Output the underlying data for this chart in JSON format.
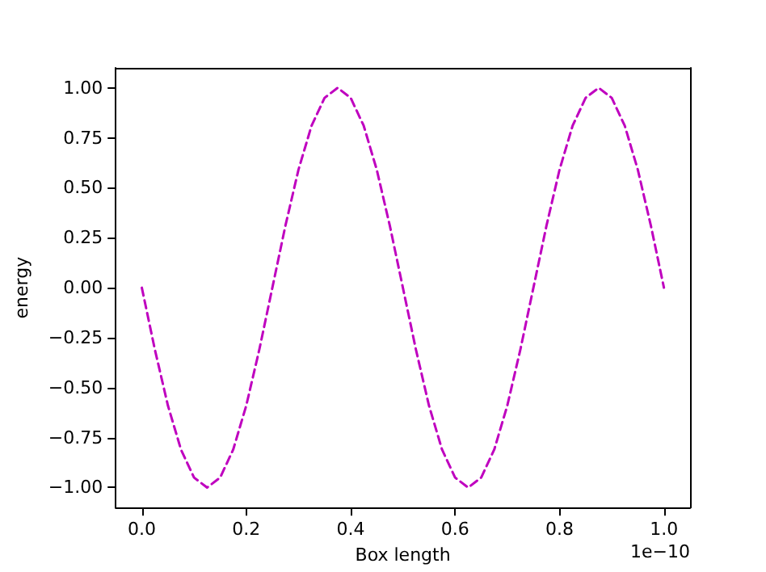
{
  "chart_data": {
    "type": "line",
    "xlabel": "Box length",
    "ylabel": "energy",
    "annotations": [
      "1e−10"
    ],
    "x": [
      0,
      0.025,
      0.05,
      0.075,
      0.1,
      0.125,
      0.15,
      0.175,
      0.2,
      0.225,
      0.25,
      0.275,
      0.3,
      0.325,
      0.35,
      0.375,
      0.4,
      0.425,
      0.45,
      0.475,
      0.5,
      0.525,
      0.55,
      0.575,
      0.6,
      0.625,
      0.65,
      0.675,
      0.7,
      0.725,
      0.75,
      0.775,
      0.8,
      0.825,
      0.85,
      0.875,
      0.9,
      0.925,
      0.95,
      0.975,
      1
    ],
    "series": [
      {
        "color": "#bf00bf",
        "line_style": "dashed",
        "values": [
          0,
          -0.31,
          -0.59,
          -0.81,
          -0.95,
          -1,
          -0.95,
          -0.81,
          -0.59,
          -0.31,
          0,
          0.31,
          0.59,
          0.81,
          0.95,
          1,
          0.95,
          0.81,
          0.59,
          0.31,
          0,
          -0.31,
          -0.59,
          -0.81,
          -0.95,
          -1,
          -0.95,
          -0.81,
          -0.59,
          -0.31,
          0,
          0.31,
          0.59,
          0.81,
          0.95,
          1,
          0.95,
          0.81,
          0.59,
          0.31,
          0
        ]
      }
    ],
    "xlim": [
      -0.05,
      1.05
    ],
    "ylim": [
      -1.1,
      1.1
    ],
    "xticks": [
      {
        "value": 0,
        "label": "0.0"
      },
      {
        "value": 0.2,
        "label": "0.2"
      },
      {
        "value": 0.4,
        "label": "0.4"
      },
      {
        "value": 0.6,
        "label": "0.6"
      },
      {
        "value": 0.8,
        "label": "0.8"
      },
      {
        "value": 1,
        "label": "1.0"
      }
    ],
    "yticks": [
      {
        "value": -1,
        "label": "−1.00"
      },
      {
        "value": -0.75,
        "label": "−0.75"
      },
      {
        "value": -0.5,
        "label": "−0.50"
      },
      {
        "value": -0.25,
        "label": "−0.25"
      },
      {
        "value": 0,
        "label": "0.00"
      },
      {
        "value": 0.25,
        "label": "0.25"
      },
      {
        "value": 0.5,
        "label": "0.50"
      },
      {
        "value": 0.75,
        "label": "0.75"
      },
      {
        "value": 1,
        "label": "1.00"
      }
    ],
    "grid": false,
    "marker": "none"
  }
}
